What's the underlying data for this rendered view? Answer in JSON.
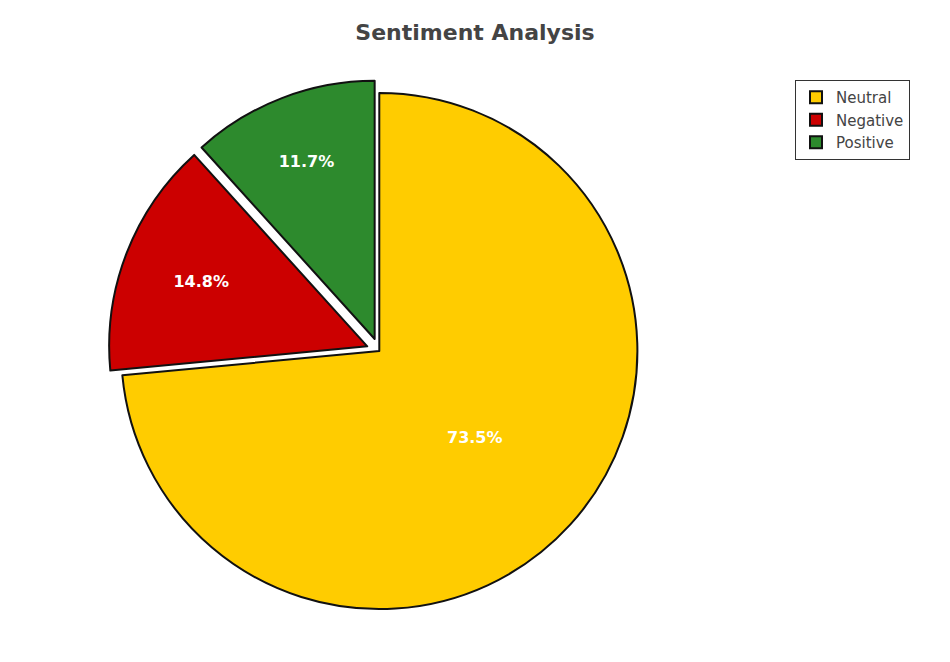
{
  "chart_data": {
    "type": "pie",
    "title": "Sentiment Analysis",
    "categories": [
      "Neutral",
      "Negative",
      "Positive"
    ],
    "values": [
      73.5,
      14.8,
      11.7
    ],
    "value_labels": [
      "73.5%",
      "14.8%",
      "11.7%"
    ],
    "colors": [
      "#ffcc00",
      "#cc0000",
      "#2d8a2d"
    ],
    "data_labels": true,
    "legend": "upper right"
  }
}
